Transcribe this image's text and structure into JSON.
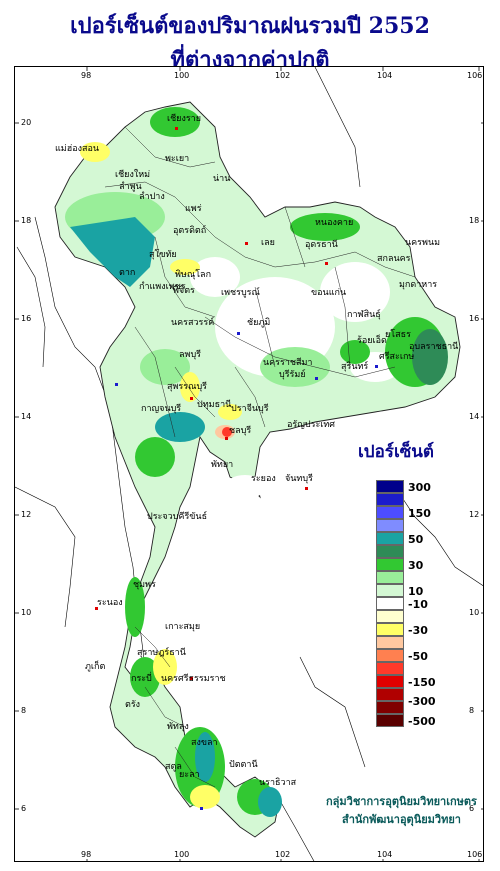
{
  "title_line1": "เปอร์เซ็นต์ของปริมาณฝนรวมปี  2552",
  "title_line2": "ที่ต่างจากค่าปกติ",
  "x_ticks": [
    "98",
    "100",
    "102",
    "104",
    "106"
  ],
  "y_ticks": [
    "20",
    "18",
    "16",
    "14",
    "12",
    "10",
    "8",
    "6"
  ],
  "legend": {
    "title": "เปอร์เซ็นต์",
    "labels": [
      "300",
      "150",
      "50",
      "30",
      "10",
      "-10",
      "-30",
      "-50",
      "-150",
      "-300",
      "-500"
    ],
    "colors": [
      "#00008b",
      "#1c1ccc",
      "#4d4dff",
      "#7f8cff",
      "#1aa3a3",
      "#2e8b57",
      "#32c832",
      "#99ee99",
      "#d4f8d4",
      "#ffffff",
      "#ffffd0",
      "#ffff66",
      "#ffc8a0",
      "#ff8050",
      "#ff3a2a",
      "#e00000",
      "#b00000",
      "#800000",
      "#5a0000"
    ]
  },
  "credit": {
    "line1": "กลุ่มวิชาการอุตุนิยมวิทยาเกษตร",
    "line2": "สำนักพัฒนาอุตุนิยมวิทยา"
  },
  "place_labels": [
    "เชียงราย",
    "แม่ฮ่องสอน",
    "พะเยา",
    "เชียงใหม่",
    "ลำพูน",
    "ลำปาง",
    "น่าน",
    "แพร่",
    "อุตรดิตถ์",
    "ตาก",
    "สุโขทัย",
    "พิษณุโลก",
    "เลย",
    "หนองคาย",
    "อุดรธานี",
    "นครพนม",
    "สกลนคร",
    "มุกดาหาร",
    "กำแพงเพชร",
    "พิจิตร",
    "เพชรบูรณ์",
    "ขอนแก่น",
    "กาฬสินธุ์",
    "นครสวรรค์",
    "ชัยภูมิ",
    "ร้อยเอ็ด",
    "ยโสธร",
    "อุบลราชธานี",
    "ลพบุรี",
    "นครราชสีมา",
    "บุรีรัมย์",
    "สุรินทร์",
    "ศรีสะเกษ",
    "สุพรรณบุรี",
    "กาญจนบุรี",
    "ปทุมธานี",
    "ปราจีนบุรี",
    "อรัญประเทศ",
    "ชลบุรี",
    "ระยอง",
    "จันทบุรี",
    "พัทยา",
    "ประจวบคีรีขันธ์",
    "ชุมพร",
    "ระนอง",
    "สุราษฎร์ธานี",
    "ภูเก็ต",
    "กระบี่",
    "นครศรีธรรมราช",
    "ตรัง",
    "พัทลุง",
    "สงขลา",
    "สตูล",
    "ปัตตานี",
    "นราธิวาส",
    "ยะลา",
    "เกาะสมุย"
  ]
}
